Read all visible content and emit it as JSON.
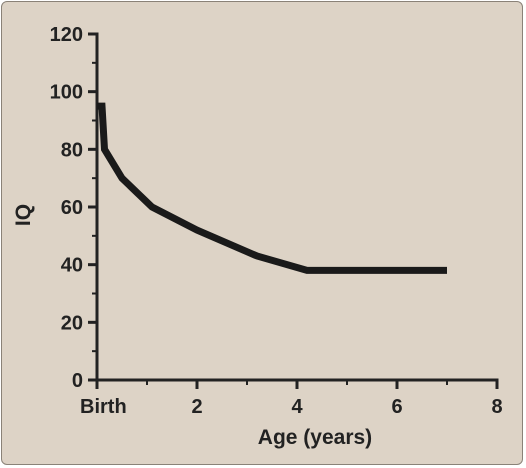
{
  "chart_data": {
    "type": "line",
    "title": "",
    "xlabel": "Age (years)",
    "ylabel": "IQ",
    "xlim": [
      0,
      8
    ],
    "ylim": [
      0,
      120
    ],
    "grid": false,
    "x_ticks": [
      {
        "value": 0,
        "label": "Birth"
      },
      {
        "value": 2,
        "label": "2"
      },
      {
        "value": 4,
        "label": "4"
      },
      {
        "value": 6,
        "label": "6"
      },
      {
        "value": 8,
        "label": "8"
      }
    ],
    "y_ticks": [
      0,
      20,
      40,
      60,
      80,
      100,
      120
    ],
    "x": [
      0.0,
      0.1,
      0.15,
      0.5,
      1.1,
      2.0,
      3.2,
      4.2,
      7.0
    ],
    "y": [
      95,
      95,
      80,
      70,
      60,
      52,
      43,
      38,
      38
    ],
    "line_color": "#1a1a1a",
    "background_color": "#ddd3c6"
  }
}
